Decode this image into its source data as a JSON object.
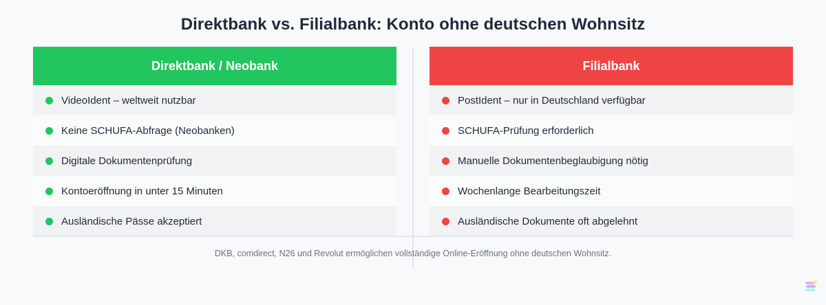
{
  "title": "Direktbank vs. Filialbank: Konto ohne deutschen Wohnsitz",
  "left": {
    "header": "Direktbank / Neobank",
    "color": "#22c55e",
    "items": [
      "VideoIdent – weltweit nutzbar",
      "Keine SCHUFA-Abfrage (Neobanken)",
      "Digitale Dokumentenprüfung",
      "Kontoeröffnung in unter 15 Minuten",
      "Ausländische Pässe akzeptiert"
    ]
  },
  "right": {
    "header": "Filialbank",
    "color": "#ef4444",
    "items": [
      "PostIdent – nur in Deutschland verfügbar",
      "SCHUFA-Prüfung erforderlich",
      "Manuelle Dokumentenbeglaubigung nötig",
      "Wochenlange Bearbeitungszeit",
      "Ausländische Dokumente oft abgelehnt"
    ]
  },
  "footnote": "DKB, comdirect, N26 und Revolut ermöglichen vollständige Online-Eröffnung ohne deutschen Wohnsitz.",
  "logo_icon": "coin-stack-icon"
}
